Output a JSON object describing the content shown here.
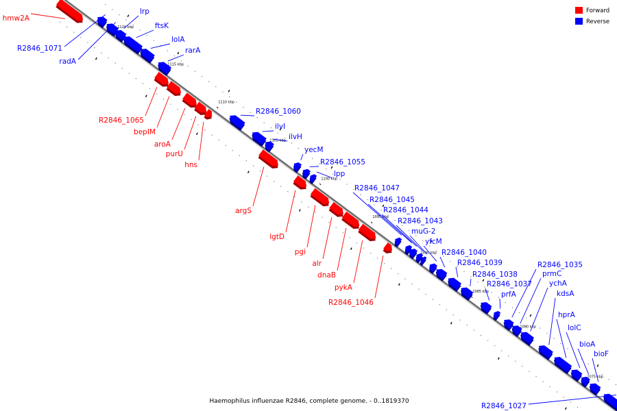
{
  "caption": "Haemophilus influenzae R2846, complete genome. - 0..1819370",
  "legend": [
    {
      "label": "Forward",
      "color": "#ff0000"
    },
    {
      "label": "Reverse",
      "color": "#0000ff"
    }
  ],
  "colors": {
    "forward": "#ff0000",
    "reverse": "#0000ff",
    "backbone": "#6e6e6e"
  },
  "ticks": [
    "1120 kbp",
    "1115 kbp",
    "1110 kbp",
    "1105 kbp",
    "1100 kbp",
    "1095 kbp",
    "1090 kbp",
    "1085 kbp",
    "1080 kbp",
    "1075 kbp"
  ],
  "forward_genes": [
    "hmw2A",
    "R2846_1065",
    "bepIM",
    "aroA",
    "purU",
    "hns",
    "argS",
    "lgtD",
    "pgi",
    "alr",
    "dnaB",
    "pykA",
    "R2846_1046"
  ],
  "reverse_genes": [
    "R2846_1071",
    "radA",
    "lrp",
    "ftsK",
    "lolA",
    "rarA",
    "R2846_1060",
    "ilvI",
    "ilvH",
    "yecM",
    "R2846_1055",
    "lpp",
    "R2846_1047",
    "R2846_1045",
    "R2846_1044",
    "R2846_1043",
    "muG-2",
    "yfcM",
    "R2846_1040",
    "R2846_1039",
    "R2846_1038",
    "R2846_1037",
    "prfA",
    "R2846_1035",
    "prmC",
    "ychA",
    "kdsA",
    "hprA",
    "lolC",
    "bioA",
    "bioF",
    "R2846_1027"
  ]
}
